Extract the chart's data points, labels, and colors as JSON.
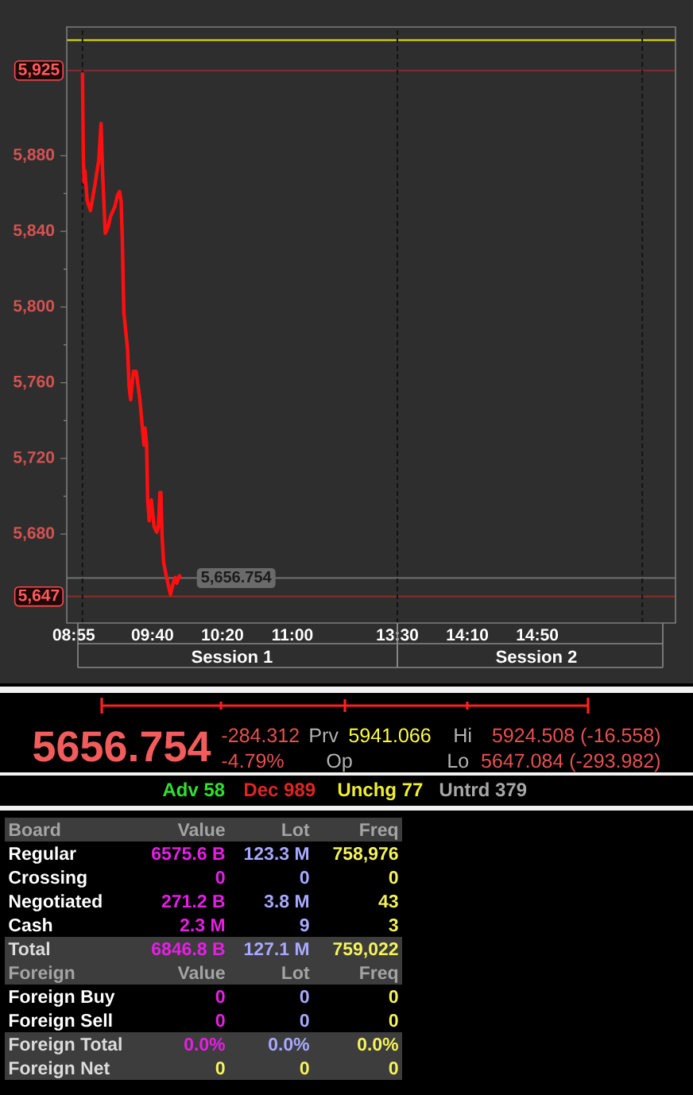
{
  "chart_data": [
    {
      "type": "line",
      "xlabel": "Session 1",
      "xlim": [
        8.85,
        12.0
      ],
      "xticks": [
        {
          "value": 8.9167,
          "label": "08:55"
        },
        {
          "value": 9.6667,
          "label": "09:40"
        },
        {
          "value": 10.3333,
          "label": "10:20"
        },
        {
          "value": 11.0,
          "label": "11:00"
        }
      ],
      "ylim": [
        5633,
        5948
      ],
      "yticks": [
        {
          "value": 5680,
          "label": "5,680"
        },
        {
          "value": 5720,
          "label": "5,720"
        },
        {
          "value": 5760,
          "label": "5,760"
        },
        {
          "value": 5800,
          "label": "5,800"
        },
        {
          "value": 5840,
          "label": "5,840"
        },
        {
          "value": 5880,
          "label": "5,880"
        }
      ],
      "series": [
        {
          "color": "#ff1010",
          "x": [
            9.0,
            9.008,
            9.015,
            9.023,
            9.045,
            9.076,
            9.117,
            9.156,
            9.177,
            9.192,
            9.217,
            9.242,
            9.268,
            9.308,
            9.333,
            9.353,
            9.368,
            9.379,
            9.394,
            9.409,
            9.429,
            9.444,
            9.459,
            9.485,
            9.511,
            9.545,
            9.571,
            9.586,
            9.595,
            9.611,
            9.621,
            9.636,
            9.656,
            9.682,
            9.708,
            9.723,
            9.738,
            9.747,
            9.758,
            9.773,
            9.798,
            9.838,
            9.864,
            9.883,
            9.898,
            9.924,
            9.935
          ],
          "values": [
            5924,
            5880,
            5866,
            5872,
            5856,
            5851,
            5864,
            5878,
            5897,
            5870,
            5839,
            5842,
            5848,
            5853,
            5859,
            5861,
            5856,
            5836,
            5797,
            5789,
            5778,
            5758,
            5751,
            5766,
            5766,
            5752,
            5736,
            5727,
            5736,
            5727,
            5698,
            5687,
            5698,
            5684,
            5681,
            5684,
            5702,
            5702,
            5679,
            5665,
            5658,
            5648,
            5654,
            5657,
            5654,
            5658,
            5656.754
          ]
        }
      ],
      "ref_lines": [
        {
          "axis": "y",
          "value": 5941.066,
          "color": "#e6e600"
        },
        {
          "axis": "y",
          "value": 5925,
          "label": "5,925",
          "color": "#8c2a2a"
        },
        {
          "axis": "y",
          "value": 5647,
          "label": "5,647",
          "color": "#8c2a2a"
        },
        {
          "axis": "y",
          "value": 5656.754,
          "label": "5,656.754",
          "color": "#6a6a6a"
        },
        {
          "axis": "x",
          "value": 9.0,
          "color": "#141414",
          "line_style": "dashed"
        }
      ]
    },
    {
      "type": "line",
      "xlabel": "Session 2",
      "xlim": [
        13.5,
        16.15
      ],
      "xticks": [
        {
          "value": 13.5,
          "label": "13:30"
        },
        {
          "value": 14.1667,
          "label": "14:10"
        },
        {
          "value": 14.8333,
          "label": "14:50"
        }
      ],
      "ylim": [
        5633,
        5948
      ],
      "tick_labels": "x",
      "ref_lines": [
        {
          "axis": "y",
          "value": 5941.066,
          "color": "#e6e600"
        },
        {
          "axis": "y",
          "value": 5925,
          "color": "#8c2a2a"
        },
        {
          "axis": "y",
          "value": 5647,
          "color": "#8c2a2a"
        },
        {
          "axis": "y",
          "value": 5656.754,
          "color": "#6a6a6a"
        },
        {
          "axis": "x",
          "value": 13.5,
          "color": "#141414",
          "line_style": "dashed"
        },
        {
          "axis": "x",
          "value": 15.8333,
          "color": "#141414",
          "line_style": "dashed"
        }
      ]
    },
    {
      "type": "other",
      "annotations": [
        "5656.754",
        "-284.312",
        "-4.79%",
        "Prv",
        "5941.066",
        "Op",
        "Hi",
        "5924.508 (-16.558)",
        "Lo",
        "5647.084 (-293.982)",
        "Adv 58",
        "Dec 989",
        "Unchg 77",
        "Untrd 379"
      ]
    },
    {
      "type": "other",
      "annotations": [
        "Board",
        "Value",
        "Lot",
        "Freq",
        "Regular",
        "6575.6 B",
        "123.3 M",
        "758,976",
        "Crossing",
        "0",
        "0",
        "0",
        "Negotiated",
        "271.2 B",
        "3.8 M",
        "43",
        "Cash",
        "2.3 M",
        "9",
        "3",
        "Total",
        "6846.8 B",
        "127.1 M",
        "759,022",
        "Foreign",
        "Value",
        "Lot",
        "Freq",
        "Foreign Buy",
        "0",
        "0",
        "0",
        "Foreign Sell",
        "0",
        "0",
        "0",
        "Foreign Total",
        "0.0%",
        "0.0%",
        "0.0%",
        "Foreign Net",
        "0",
        "0",
        "0"
      ]
    }
  ]
}
